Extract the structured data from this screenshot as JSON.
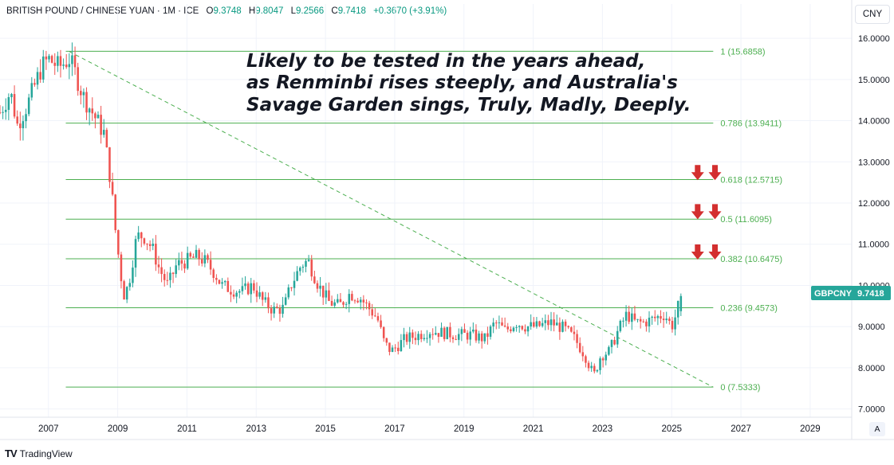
{
  "header": {
    "symbol": "BRITISH POUND / CHINESE YUAN · 1M · ICE",
    "open_label": "O",
    "open": "9.3748",
    "high_label": "H",
    "high": "9.8047",
    "low_label": "L",
    "low": "9.2566",
    "close_label": "C",
    "close": "9.7418",
    "change": "+0.3670 (+3.91%)"
  },
  "currency_button": "CNY",
  "auto_button": "A",
  "footer": {
    "logo": "TV",
    "brand": "TradingView"
  },
  "price_tag": {
    "symbol": "GBPCNY",
    "value": "9.7418"
  },
  "annotation_lines": [
    "Likely to be tested in the years ahead,",
    "as Renminbi rises steeply, and Australia's",
    "Savage Garden sings, Truly, Madly, Deeply."
  ],
  "colors": {
    "up": "#26a69a",
    "down": "#ef5350",
    "fib": "#4caf50",
    "arrow": "#d32f2f",
    "tag": "#26a69a",
    "grid": "#f0f3fa",
    "axis_text": "#131722"
  },
  "chart_data": {
    "type": "candlestick",
    "symbol": "GBPCNY",
    "interval": "1M",
    "y_axis": {
      "range": [
        6.8,
        16.35
      ],
      "ticks": [
        "7.0000",
        "8.0000",
        "9.0000",
        "10.0000",
        "11.0000",
        "12.0000",
        "13.0000",
        "14.0000",
        "15.0000",
        "16.0000"
      ],
      "tick_values": [
        7,
        8,
        9,
        10,
        11,
        12,
        13,
        14,
        15,
        16
      ]
    },
    "x_axis": {
      "range": [
        2005.6,
        2030.2
      ],
      "ticks": [
        "2007",
        "2009",
        "2011",
        "2013",
        "2015",
        "2017",
        "2019",
        "2021",
        "2023",
        "2025",
        "2027",
        "2029"
      ],
      "tick_values": [
        2007,
        2009,
        2011,
        2013,
        2015,
        2017,
        2019,
        2021,
        2023,
        2025,
        2027,
        2029
      ]
    },
    "fibonacci": {
      "start_x": 2007.5,
      "end_x": 2026.2,
      "levels": [
        {
          "ratio": "1",
          "value": 15.6858,
          "label": "1 (15.6858)"
        },
        {
          "ratio": "0.786",
          "value": 13.9411,
          "label": "0.786 (13.9411)"
        },
        {
          "ratio": "0.618",
          "value": 12.5715,
          "label": "0.618 (12.5715)"
        },
        {
          "ratio": "0.5",
          "value": 11.6095,
          "label": "0.5 (11.6095)"
        },
        {
          "ratio": "0.382",
          "value": 10.6475,
          "label": "0.382 (10.6475)"
        },
        {
          "ratio": "0.236",
          "value": 9.4573,
          "label": "0.236 (9.4573)"
        },
        {
          "ratio": "0",
          "value": 7.5333,
          "label": "0 (7.5333)"
        }
      ]
    },
    "trendline": {
      "from": [
        2007.6,
        15.68
      ],
      "to": [
        2026.2,
        7.53
      ],
      "style": "dashed"
    },
    "down_arrows": [
      {
        "x": [
          2025.75,
          2026.25
        ],
        "y": 12.75
      },
      {
        "x": [
          2025.75,
          2026.25
        ],
        "y": 11.8
      },
      {
        "x": [
          2025.75,
          2026.25
        ],
        "y": 10.82
      }
    ],
    "price_path": [
      [
        2005.6,
        14.2
      ],
      [
        2005.9,
        14.7
      ],
      [
        2006.1,
        13.9
      ],
      [
        2006.4,
        14.4
      ],
      [
        2006.8,
        15.3
      ],
      [
        2007.0,
        15.5
      ],
      [
        2007.3,
        15.3
      ],
      [
        2007.6,
        15.5
      ],
      [
        2007.8,
        15.1
      ],
      [
        2008.0,
        14.6
      ],
      [
        2008.2,
        14.3
      ],
      [
        2008.4,
        14.0
      ],
      [
        2008.6,
        13.7
      ],
      [
        2008.8,
        12.5
      ],
      [
        2008.95,
        11.2
      ],
      [
        2009.1,
        10.2
      ],
      [
        2009.2,
        9.7
      ],
      [
        2009.35,
        10.2
      ],
      [
        2009.55,
        11.2
      ],
      [
        2009.75,
        11.2
      ],
      [
        2010.0,
        10.9
      ],
      [
        2010.2,
        10.4
      ],
      [
        2010.45,
        10.0
      ],
      [
        2010.7,
        10.5
      ],
      [
        2011.0,
        10.6
      ],
      [
        2011.3,
        10.7
      ],
      [
        2011.5,
        10.6
      ],
      [
        2011.8,
        10.3
      ],
      [
        2012.0,
        10.0
      ],
      [
        2012.3,
        9.9
      ],
      [
        2012.6,
        9.85
      ],
      [
        2012.9,
        10.0
      ],
      [
        2013.2,
        9.6
      ],
      [
        2013.5,
        9.4
      ],
      [
        2013.8,
        9.45
      ],
      [
        2014.0,
        10.0
      ],
      [
        2014.3,
        10.5
      ],
      [
        2014.5,
        10.6
      ],
      [
        2014.8,
        10.0
      ],
      [
        2015.1,
        9.6
      ],
      [
        2015.4,
        9.5
      ],
      [
        2015.7,
        9.8
      ],
      [
        2016.0,
        9.7
      ],
      [
        2016.3,
        9.4
      ],
      [
        2016.5,
        9.2
      ],
      [
        2016.7,
        8.6
      ],
      [
        2016.9,
        8.4
      ],
      [
        2017.3,
        8.7
      ],
      [
        2017.7,
        8.8
      ],
      [
        2018.0,
        8.9
      ],
      [
        2018.4,
        8.85
      ],
      [
        2018.8,
        8.8
      ],
      [
        2019.2,
        8.8
      ],
      [
        2019.6,
        8.7
      ],
      [
        2019.9,
        9.1
      ],
      [
        2020.2,
        8.9
      ],
      [
        2020.5,
        9.1
      ],
      [
        2020.8,
        9.0
      ],
      [
        2021.1,
        9.0
      ],
      [
        2021.5,
        9.1
      ],
      [
        2021.9,
        8.95
      ],
      [
        2022.2,
        8.7
      ],
      [
        2022.5,
        8.3
      ],
      [
        2022.75,
        7.8
      ],
      [
        2022.95,
        8.3
      ],
      [
        2023.2,
        8.4
      ],
      [
        2023.45,
        8.9
      ],
      [
        2023.7,
        9.3
      ],
      [
        2023.95,
        9.1
      ],
      [
        2024.2,
        9.1
      ],
      [
        2024.5,
        9.2
      ],
      [
        2024.8,
        9.3
      ],
      [
        2025.0,
        9.0
      ],
      [
        2025.15,
        9.35
      ],
      [
        2025.25,
        9.7418
      ]
    ],
    "last_candle": {
      "open": 9.3748,
      "high": 9.8047,
      "low": 9.2566,
      "close": 9.7418
    }
  }
}
